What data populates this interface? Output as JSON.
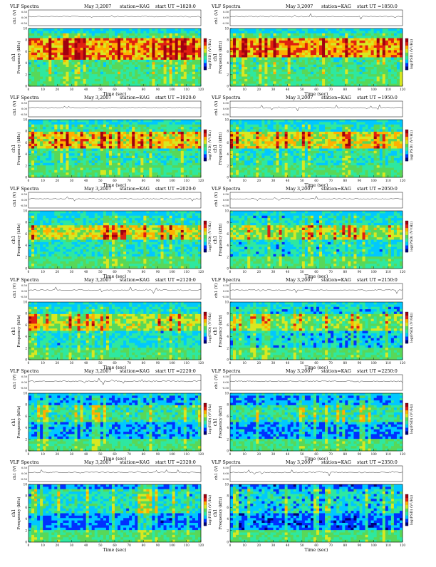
{
  "page": {
    "background": "#ffffff"
  },
  "chart_data": {
    "type": "heatmap",
    "common": {
      "title": "VLF Spectra",
      "date": "May 3,2007",
      "station": "station=KAG",
      "ut_label": "start  UT  =",
      "amplitude_label": "ch1 (V)",
      "amplitude_ticks": [
        "0.50",
        "0.00",
        "-0.50"
      ],
      "ylabel_channel": "ch1",
      "ylabel": "Frequency (kHz)",
      "xlabel": "Time (sec)",
      "colorbar_label": "log(PSD) (V²/Hz)",
      "ylim": [
        0,
        10
      ],
      "y_ticks": [
        "0",
        "2",
        "4",
        "6",
        "8",
        "10"
      ],
      "xlim": [
        0,
        120
      ],
      "colormap": [
        "#00007a",
        "#0030ff",
        "#00c8ff",
        "#2ee8a0",
        "#58d858",
        "#d8e820",
        "#ffb000",
        "#e02010",
        "#a00010"
      ]
    },
    "panels": [
      {
        "start": "1820:0",
        "x_ticks": [
          "0",
          "10",
          "20",
          "30",
          "40",
          "50",
          "60",
          "70",
          "80",
          "90",
          "100",
          "110",
          "120"
        ],
        "intensity": 0.74,
        "red_band": [
          4.5,
          8.5
        ],
        "noise_floor_top": 9.2
      },
      {
        "start": "1850:0",
        "x_ticks": [
          "0",
          "10",
          "20",
          "30",
          "40",
          "50",
          "60",
          "70",
          "80",
          "90",
          "100",
          "110",
          "120"
        ],
        "intensity": 0.72,
        "red_band": [
          5,
          8.5
        ],
        "noise_floor_top": 9.2
      },
      {
        "start": "1920:0",
        "x_ticks": [
          "0",
          "10",
          "20",
          "30",
          "40",
          "50",
          "60",
          "70",
          "80",
          "90",
          "100",
          "110",
          "120"
        ],
        "intensity": 0.66,
        "red_band": [
          5,
          8
        ],
        "noise_floor_top": 9.2
      },
      {
        "start": "1950:0",
        "x_ticks": [
          "0",
          "10",
          "20",
          "30",
          "40",
          "50",
          "60",
          "70",
          "80",
          "90",
          "100",
          "110",
          "120"
        ],
        "intensity": 0.62,
        "red_band": [
          5,
          8
        ],
        "noise_floor_top": 9.0
      },
      {
        "start": "2020:0",
        "x_ticks": [
          "0",
          "10",
          "20",
          "30",
          "40",
          "50",
          "60",
          "70",
          "80",
          "90",
          "100",
          "110",
          "120"
        ],
        "intensity": 0.6,
        "red_band": [
          5,
          7.5
        ],
        "noise_floor_top": 9.0
      },
      {
        "start": "2050:0",
        "x_ticks": [
          "0",
          "10",
          "20",
          "30",
          "40",
          "50",
          "60",
          "70",
          "80",
          "90",
          "100",
          "110",
          "120"
        ],
        "intensity": 0.55,
        "red_band": [
          5,
          7.5
        ],
        "noise_floor_top": 9.0
      },
      {
        "start": "2120:0",
        "x_ticks": [
          "0",
          "10",
          "20",
          "30",
          "40",
          "50",
          "60",
          "70",
          "80",
          "90",
          "100",
          "110",
          "120"
        ],
        "intensity": 0.56,
        "red_band": [
          5,
          8
        ],
        "noise_floor_top": 9.2
      },
      {
        "start": "2150:0",
        "x_ticks": [
          "0",
          "10",
          "20",
          "30",
          "40",
          "50",
          "60",
          "70",
          "80",
          "90",
          "100",
          "110",
          "120"
        ],
        "intensity": 0.5,
        "red_band": [
          5,
          8
        ],
        "noise_floor_top": 9.2
      },
      {
        "start": "2220:0",
        "x_ticks": [
          "0",
          "10",
          "20",
          "30",
          "40",
          "50",
          "60",
          "70",
          "80",
          "90",
          "100",
          "110",
          "120"
        ],
        "intensity": 0.42,
        "red_band": [
          5,
          8
        ],
        "noise_floor_top": 9.5
      },
      {
        "start": "2250:0",
        "x_ticks": [
          "0",
          "10",
          "20",
          "30",
          "40",
          "50",
          "60",
          "70",
          "80",
          "90",
          "100",
          "110",
          "120"
        ],
        "intensity": 0.4,
        "red_band": [
          5,
          8
        ],
        "noise_floor_top": 9.5
      },
      {
        "start": "2320:0",
        "x_ticks": [
          "0",
          "10",
          "20",
          "30",
          "40",
          "50",
          "60",
          "70",
          "80",
          "90",
          "100",
          "110",
          "120"
        ],
        "intensity": 0.36,
        "red_band": [
          5,
          9
        ],
        "noise_floor_top": 9.8
      },
      {
        "start": "2350:0",
        "x_ticks": [
          "0",
          "10",
          "20",
          "30",
          "40",
          "50",
          "60",
          "70",
          "80",
          "90",
          "100",
          "110",
          "120"
        ],
        "intensity": 0.32,
        "red_band": [
          5,
          9
        ],
        "noise_floor_top": 9.8
      }
    ]
  }
}
